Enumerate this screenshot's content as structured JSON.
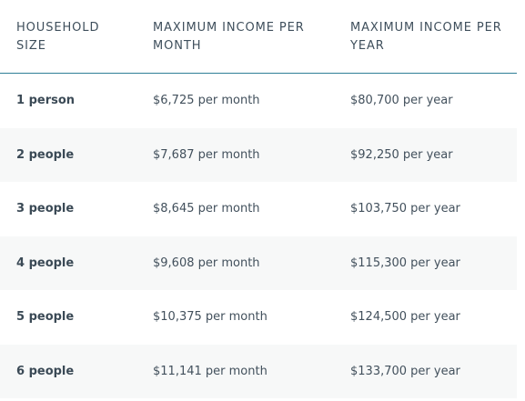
{
  "table": {
    "headers": [
      "HOUSEHOLD SIZE",
      "MAXIMUM INCOME PER MONTH",
      "MAXIMUM INCOME PER YEAR"
    ],
    "rows": [
      {
        "size": "1 person",
        "month": "$6,725 per month",
        "year": "$80,700 per year"
      },
      {
        "size": "2 people",
        "month": "$7,687 per month",
        "year": "$92,250 per year"
      },
      {
        "size": "3 people",
        "month": "$8,645 per month",
        "year": "$103,750 per year"
      },
      {
        "size": "4 people",
        "month": "$9,608 per month",
        "year": "$115,300 per year"
      },
      {
        "size": "5 people",
        "month": "$10,375 per month",
        "year": "$124,500 per year"
      },
      {
        "size": "6 people",
        "month": "$11,141 per month",
        "year": "$133,700 per year"
      }
    ]
  },
  "colors": {
    "header_rule": "#2f7f97",
    "stripe": "#f7f8f8",
    "text": "#42505c"
  }
}
